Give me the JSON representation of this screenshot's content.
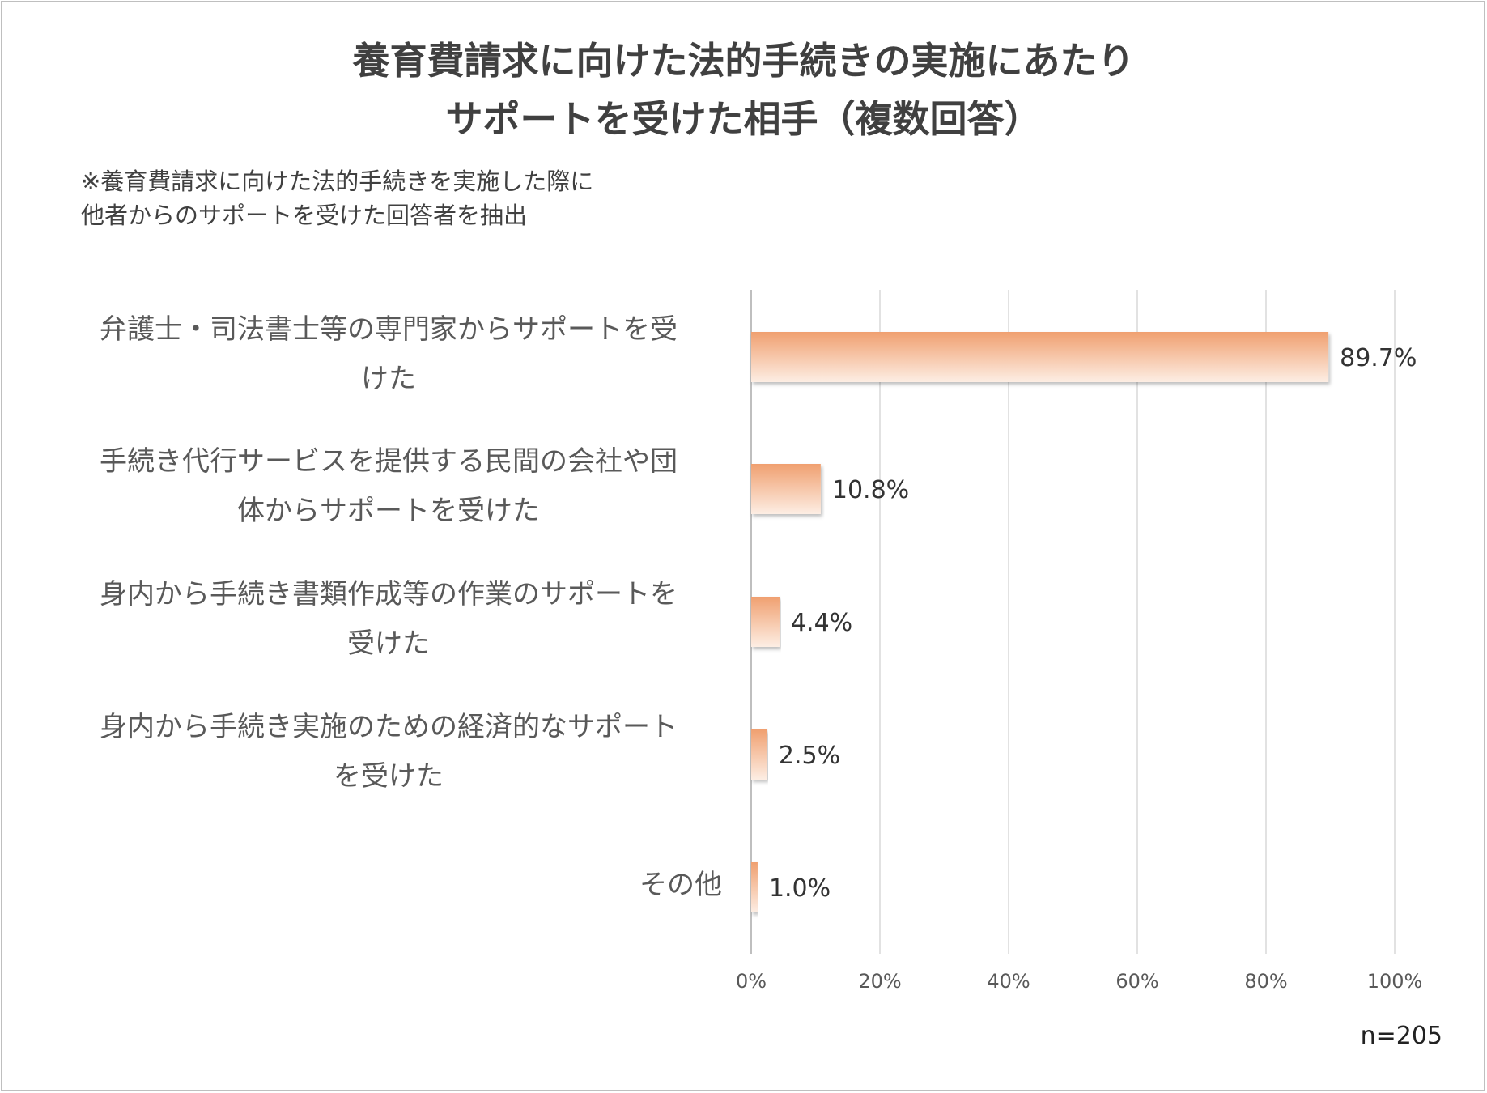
{
  "chart_data": {
    "type": "bar",
    "orientation": "horizontal",
    "title_lines": [
      "養育費請求に向けた法的手続きの実施にあたり",
      "サポートを受けた相手（複数回答）"
    ],
    "note_lines": [
      "※養育費請求に向けた法的手続きを実施した際に",
      "他者からのサポートを受けた回答者を抽出"
    ],
    "categories": [
      [
        "弁護士・司法書士等の専門家からサポートを受",
        "けた"
      ],
      [
        "手続き代行サービスを提供する民間の会社や団",
        "体からサポートを受けた"
      ],
      [
        "身内から手続き書類作成等の作業のサポートを",
        "受けた"
      ],
      [
        "身内から手続き実施のための経済的なサポート",
        "を受けた"
      ],
      [
        "その他"
      ]
    ],
    "values": [
      89.7,
      10.8,
      4.4,
      2.5,
      1.0
    ],
    "value_labels": [
      "89.7%",
      "10.8%",
      "4.4%",
      "2.5%",
      "1.0%"
    ],
    "xlim": [
      0,
      100
    ],
    "x_ticks": [
      "0%",
      "20%",
      "40%",
      "60%",
      "80%",
      "100%"
    ],
    "sample_size": "n=205",
    "bar_color_top": "#f0a070",
    "bar_color_bottom": "#fdeee4",
    "grid_color": "#d9d9d9"
  }
}
